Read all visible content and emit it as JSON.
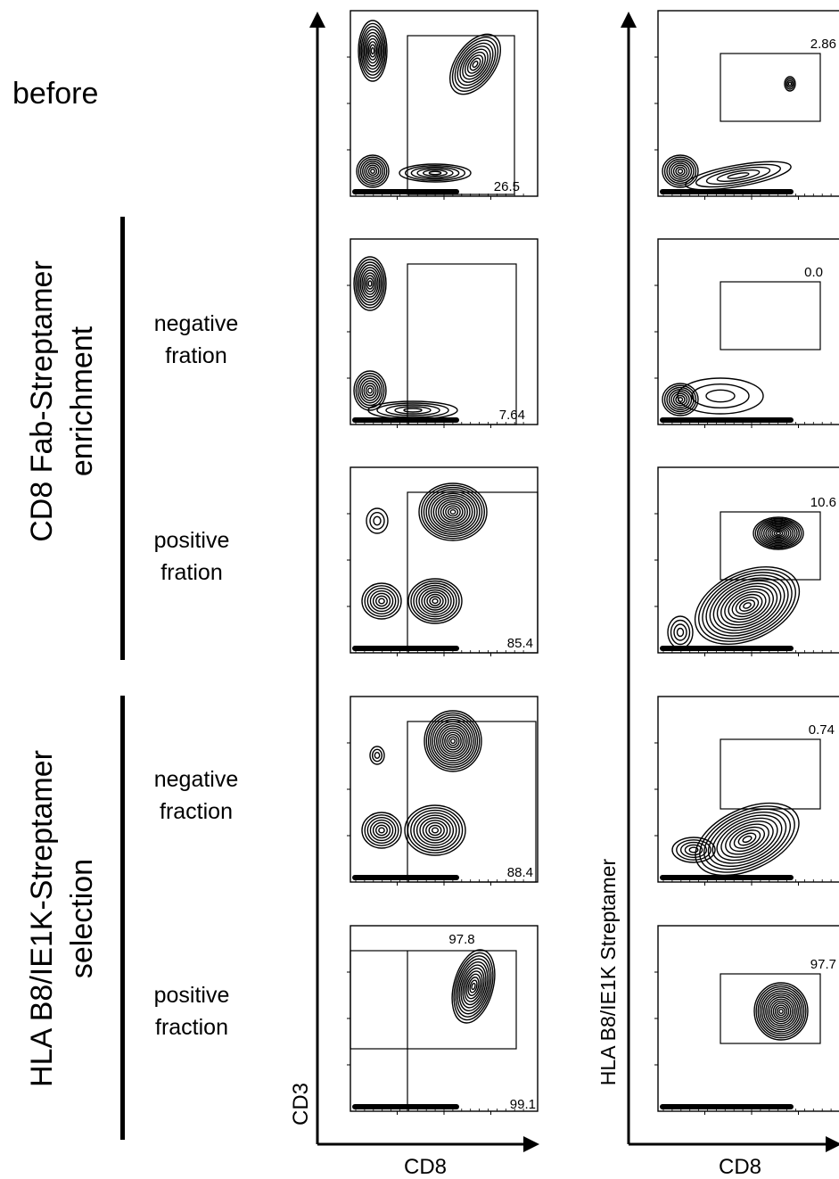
{
  "row_labels": {
    "before": "before",
    "cd8_group": [
      "CD8 Fab-Streptamer",
      "enrichment"
    ],
    "hla_group": [
      "HLA B8/IE1K-Streptamer",
      "selection"
    ],
    "neg1": [
      "negative",
      "fration"
    ],
    "pos1": [
      "positive",
      "fration"
    ],
    "neg2": [
      "negative",
      "fraction"
    ],
    "pos2": [
      "positive",
      "fraction"
    ]
  },
  "axes": {
    "left_x": "CD8",
    "left_y": "CD3",
    "right_x": "CD8",
    "right_y": "HLA B8/IE1K Streptamer"
  },
  "chart_data": [
    {
      "type": "contour",
      "panel": "before / CD3 vs CD8",
      "xlabel": "CD8",
      "ylabel": "CD3",
      "gates": [
        {
          "label": "26.5"
        }
      ]
    },
    {
      "type": "contour",
      "panel": "before / Streptamer vs CD8",
      "xlabel": "CD8",
      "ylabel": "HLA B8/IE1K Streptamer",
      "gates": [
        {
          "label": "2.86"
        }
      ]
    },
    {
      "type": "contour",
      "panel": "CD8 enrichment negative / CD3 vs CD8",
      "gates": [
        {
          "label": "7.64"
        }
      ]
    },
    {
      "type": "contour",
      "panel": "CD8 enrichment negative / Streptamer vs CD8",
      "gates": [
        {
          "label": "0.0"
        }
      ]
    },
    {
      "type": "contour",
      "panel": "CD8 enrichment positive / CD3 vs CD8",
      "gates": [
        {
          "label": "85.4"
        }
      ]
    },
    {
      "type": "contour",
      "panel": "CD8 enrichment positive / Streptamer vs CD8",
      "gates": [
        {
          "label": "10.6"
        }
      ]
    },
    {
      "type": "contour",
      "panel": "HLA selection negative / CD3 vs CD8",
      "gates": [
        {
          "label": "88.4"
        }
      ]
    },
    {
      "type": "contour",
      "panel": "HLA selection negative / Streptamer vs CD8",
      "gates": [
        {
          "label": "0.74"
        }
      ]
    },
    {
      "type": "contour",
      "panel": "HLA selection positive / CD3 vs CD8",
      "gates": [
        {
          "label": "97.8"
        },
        {
          "label": "99.1"
        }
      ]
    },
    {
      "type": "contour",
      "panel": "HLA selection positive / Streptamer vs CD8",
      "gates": [
        {
          "label": "97.7"
        }
      ]
    }
  ]
}
